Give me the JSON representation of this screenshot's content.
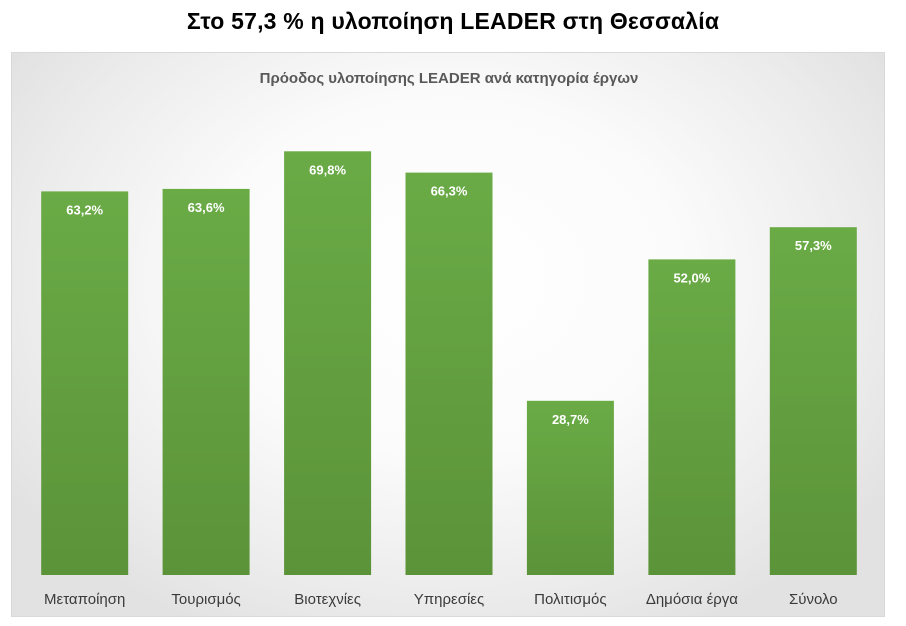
{
  "page": {
    "title": "Στο 57,3 % η υλοποίηση LEADER στη Θεσσαλία"
  },
  "chart_data": {
    "type": "bar",
    "title": "Πρόοδος υλοποίησης LEADER ανά κατηγορία έργων",
    "xlabel": "",
    "ylabel": "",
    "ylim": [
      0,
      80
    ],
    "grid": false,
    "legend": "none",
    "categories": [
      "Μεταποίηση",
      "Τουρισμός",
      "Βιοτεχνίες",
      "Υπηρεσίες",
      "Πολιτισμός",
      "Δημόσια έργα",
      "Σύνολο"
    ],
    "values": [
      63.2,
      63.6,
      69.8,
      66.3,
      28.7,
      52.0,
      57.3
    ],
    "data_labels": [
      "63,2%",
      "63,6%",
      "69,8%",
      "66,3%",
      "28,7%",
      "52,0%",
      "57,3%"
    ],
    "colors": {
      "bar_top": "#6aab46",
      "bar_bottom": "#5b9339",
      "label_text": "#ffffff",
      "category_text": "#3a3a3a",
      "chart_title_text": "#595959"
    }
  }
}
